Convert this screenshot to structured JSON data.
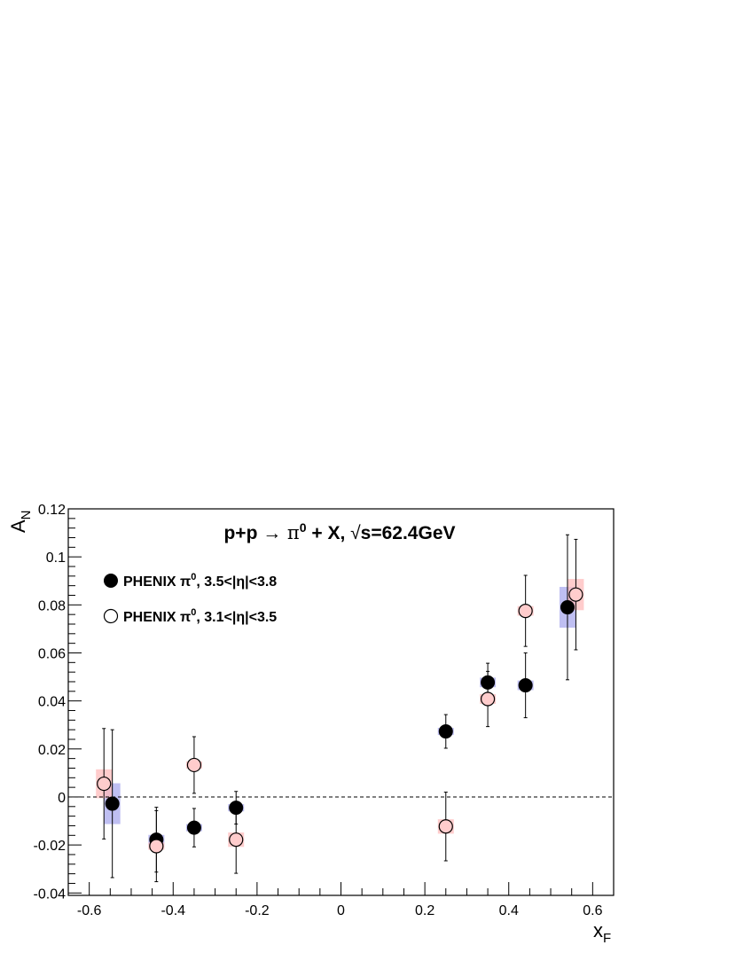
{
  "chart_data": {
    "type": "scatter",
    "title": {
      "prefix": "p+p ",
      "arrow": "→",
      "pi": " π",
      "pi_sup": "0",
      "mid": " + X, ",
      "sqrt": "√",
      "s_text": "s=62.4GeV"
    },
    "xlabel": {
      "main": "x",
      "sub": "F"
    },
    "ylabel": {
      "main": "A",
      "sub": "N"
    },
    "xlim": [
      -0.65,
      0.65
    ],
    "ylim": [
      -0.041,
      0.12
    ],
    "x_ticks": [
      {
        "v": -0.6,
        "label": "-0.6"
      },
      {
        "v": -0.4,
        "label": "-0.4"
      },
      {
        "v": -0.2,
        "label": "-0.2"
      },
      {
        "v": 0,
        "label": "0"
      },
      {
        "v": 0.2,
        "label": "0.2"
      },
      {
        "v": 0.4,
        "label": "0.4"
      },
      {
        "v": 0.6,
        "label": "0.6"
      }
    ],
    "y_ticks": [
      {
        "v": -0.04,
        "label": "-0.04"
      },
      {
        "v": -0.02,
        "label": "-0.02"
      },
      {
        "v": 0,
        "label": "0"
      },
      {
        "v": 0.02,
        "label": "0.02"
      },
      {
        "v": 0.04,
        "label": "0.04"
      },
      {
        "v": 0.06,
        "label": "0.06"
      },
      {
        "v": 0.08,
        "label": "0.08"
      },
      {
        "v": 0.1,
        "label": "0.1"
      },
      {
        "v": 0.12,
        "label": "0.12"
      }
    ],
    "grid": false,
    "reference_line": {
      "y": 0,
      "style": "dashed"
    },
    "legend": {
      "position": "top-left"
    },
    "series": [
      {
        "name": "PHENIX π⁰, 3.5<|η|<3.8",
        "legend": {
          "prefix": "PHENIX π",
          "sup": "0",
          "suffix": ", 3.5<|η|<3.8"
        },
        "marker": "filled-circle",
        "marker_color": "#000000",
        "sys_color": "#aaaaee",
        "points": [
          {
            "x": -0.545,
            "y": -0.0028,
            "err": 0.0308,
            "sys": 0.0085
          },
          {
            "x": -0.44,
            "y": -0.0178,
            "err": 0.0135,
            "sys": 0.002
          },
          {
            "x": -0.35,
            "y": -0.0128,
            "err": 0.008,
            "sys": 0.0015
          },
          {
            "x": -0.25,
            "y": -0.0045,
            "err": 0.0068,
            "sys": 0.0015
          },
          {
            "x": 0.25,
            "y": 0.0273,
            "err": 0.007,
            "sys": 0.0015
          },
          {
            "x": 0.35,
            "y": 0.0477,
            "err": 0.008,
            "sys": 0.002
          },
          {
            "x": 0.44,
            "y": 0.0465,
            "err": 0.0135,
            "sys": 0.002
          },
          {
            "x": 0.54,
            "y": 0.079,
            "err": 0.0302,
            "sys": 0.0085
          }
        ]
      },
      {
        "name": "PHENIX π⁰, 3.1<|η|<3.5",
        "legend": {
          "prefix": "PHENIX π",
          "sup": "0",
          "suffix": ", 3.1<|η|<3.5"
        },
        "marker": "open-circle",
        "marker_color": "#000000",
        "fill_color": "#ffcccc",
        "sys_color": "#ffbbbb",
        "points": [
          {
            "x": -0.565,
            "y": 0.0055,
            "err": 0.023,
            "sys": 0.006
          },
          {
            "x": -0.44,
            "y": -0.0205,
            "err": 0.0148,
            "sys": 0.0015
          },
          {
            "x": -0.35,
            "y": 0.0133,
            "err": 0.0118,
            "sys": 0.0015
          },
          {
            "x": -0.25,
            "y": -0.0178,
            "err": 0.014,
            "sys": 0.003
          },
          {
            "x": 0.25,
            "y": -0.0123,
            "err": 0.0143,
            "sys": 0.003
          },
          {
            "x": 0.35,
            "y": 0.0408,
            "err": 0.0115,
            "sys": 0.002
          },
          {
            "x": 0.44,
            "y": 0.0775,
            "err": 0.0148,
            "sys": 0.002
          },
          {
            "x": 0.56,
            "y": 0.0843,
            "err": 0.023,
            "sys": 0.0065
          }
        ]
      }
    ]
  }
}
